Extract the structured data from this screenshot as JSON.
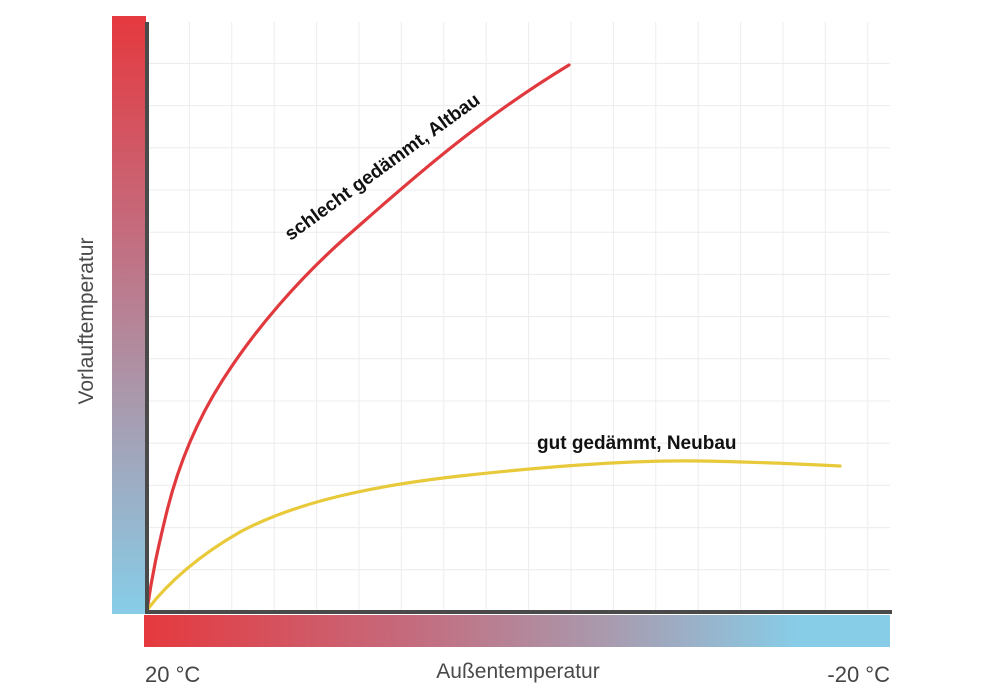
{
  "chart_data": {
    "type": "line",
    "title": "",
    "xlabel": "Außentemperatur",
    "ylabel": "Vorlauftemperatur",
    "x_tick_labels": [
      "20 °C",
      "-20 °C"
    ],
    "x_range": [
      20,
      -20
    ],
    "x_unit": "°C",
    "y_ticks_labeled": false,
    "grid": true,
    "legend": "inline curve labels",
    "colors": {
      "axis": "#4a4a4a",
      "grid": "#ececec",
      "gradient_warm": "#E5393E",
      "gradient_mid": "#A99AAE",
      "gradient_cold": "#87CDE8"
    },
    "series": [
      {
        "name": "schlecht gedämmt, Altbau",
        "color": "#E03A3E",
        "x_relative": [
          0.0,
          0.017,
          0.035,
          0.08,
          0.14,
          0.26,
          0.39,
          0.56
        ],
        "y_relative": [
          0.0,
          0.11,
          0.22,
          0.37,
          0.55,
          0.72,
          0.85,
          0.92
        ]
      },
      {
        "name": "gut gedämmt, Neubau",
        "color": "#E8C93A",
        "x_relative": [
          0.0,
          0.06,
          0.125,
          0.19,
          0.31,
          0.52,
          0.7,
          0.93
        ],
        "y_relative": [
          0.0,
          0.07,
          0.14,
          0.17,
          0.21,
          0.24,
          0.25,
          0.245
        ]
      }
    ]
  },
  "labels": {
    "y_axis": "Vorlauftemperatur",
    "x_axis": "Außentemperatur",
    "x_left": "20 °C",
    "x_right": "-20 °C",
    "curve_bad": "schlecht gedämmt, Altbau",
    "curve_good": "gut gedämmt, Neubau"
  }
}
